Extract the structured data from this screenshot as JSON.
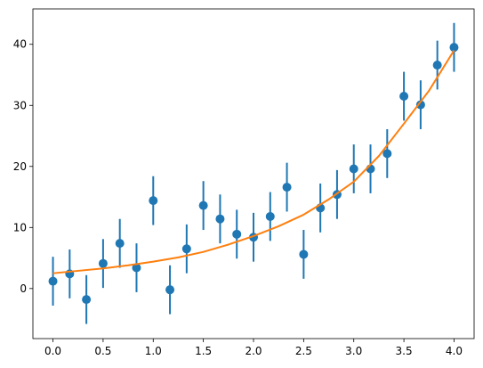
{
  "chart_data": {
    "type": "scatter",
    "title": "",
    "xlabel": "",
    "ylabel": "",
    "xlim": [
      -0.2,
      4.2
    ],
    "ylim": [
      -8.2,
      45.8
    ],
    "grid": false,
    "x_ticks": [
      0.0,
      0.5,
      1.0,
      1.5,
      2.0,
      2.5,
      3.0,
      3.5,
      4.0
    ],
    "x_tick_labels": [
      "0.0",
      "0.5",
      "1.0",
      "1.5",
      "2.0",
      "2.5",
      "3.0",
      "3.5",
      "4.0"
    ],
    "y_ticks": [
      0,
      10,
      20,
      30,
      40
    ],
    "y_tick_labels": [
      "0",
      "10",
      "20",
      "30",
      "40"
    ],
    "colors": {
      "data": "#1f77b4",
      "fit": "#ff7f0e"
    },
    "series": [
      {
        "type": "errorbar",
        "x": [
          0.0,
          0.1667,
          0.3333,
          0.5,
          0.6667,
          0.8333,
          1.0,
          1.1667,
          1.3333,
          1.5,
          1.6667,
          1.8333,
          2.0,
          2.1667,
          2.3333,
          2.5,
          2.6667,
          2.8333,
          3.0,
          3.1667,
          3.3333,
          3.5,
          3.6667,
          3.8333,
          4.0
        ],
        "y": [
          1.2,
          2.4,
          -1.8,
          4.1,
          7.4,
          3.4,
          14.4,
          -0.2,
          6.5,
          13.6,
          11.4,
          8.9,
          8.4,
          11.8,
          16.6,
          5.6,
          13.2,
          15.4,
          19.6,
          19.6,
          22.1,
          31.5,
          30.1,
          36.6,
          39.5
        ],
        "yerr": 4.0
      },
      {
        "type": "line",
        "x": [
          0.0,
          0.25,
          0.5,
          0.75,
          1.0,
          1.25,
          1.5,
          1.75,
          2.0,
          2.25,
          2.5,
          2.75,
          3.0,
          3.25,
          3.5,
          3.75,
          4.0
        ],
        "y": [
          2.5,
          2.9,
          3.3,
          3.8,
          4.4,
          5.1,
          6.0,
          7.2,
          8.6,
          10.2,
          12.1,
          14.6,
          17.5,
          21.7,
          27.0,
          32.4,
          39.0
        ]
      }
    ]
  }
}
